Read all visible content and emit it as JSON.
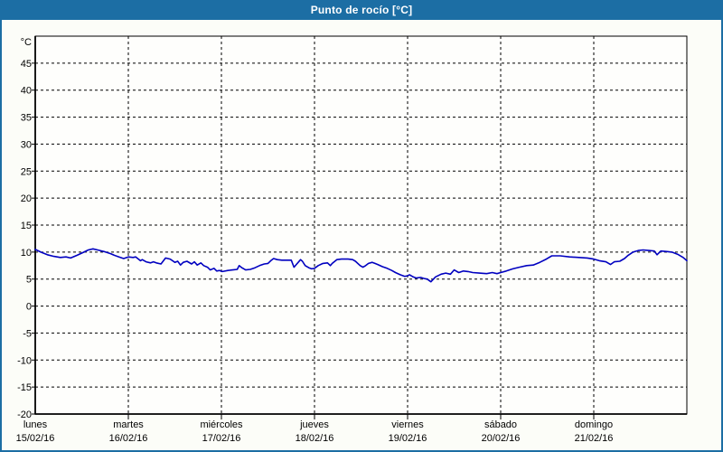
{
  "window": {
    "title": "Punto de rocío [°C]"
  },
  "colors": {
    "header_bg": "#1c6ea4",
    "page_border": "#1c6ea4",
    "page_bg": "#fcfdf8",
    "plot_bg": "#fefefc",
    "grid": "#000000",
    "axis": "#000000",
    "line": "#0000c0",
    "title_text": "#ffffff"
  },
  "chart_data": {
    "type": "line",
    "title": "Punto de rocío [°C]",
    "xlabel": "",
    "ylabel": "°C",
    "ylim": [
      -20,
      50
    ],
    "ytick_step": 5,
    "yticks": [
      45,
      40,
      35,
      30,
      25,
      20,
      15,
      10,
      5,
      0,
      -5,
      -10,
      -15,
      -20
    ],
    "grid": true,
    "legend_position": "none",
    "x_axis": {
      "days": [
        {
          "name": "lunes",
          "date": "15/02/16"
        },
        {
          "name": "martes",
          "date": "16/02/16"
        },
        {
          "name": "miércoles",
          "date": "17/02/16"
        },
        {
          "name": "jueves",
          "date": "18/02/16"
        },
        {
          "name": "viernes",
          "date": "19/02/16"
        },
        {
          "name": "sábado",
          "date": "20/02/16"
        },
        {
          "name": "domingo",
          "date": "21/02/16"
        }
      ],
      "x_range_days": [
        0,
        7
      ]
    },
    "series": [
      {
        "name": "Punto de rocío",
        "color": "#0000c0",
        "units": "°C",
        "points": [
          [
            0.0,
            10.5
          ],
          [
            0.06,
            10.0
          ],
          [
            0.13,
            9.5
          ],
          [
            0.2,
            9.2
          ],
          [
            0.27,
            9.0
          ],
          [
            0.33,
            9.1
          ],
          [
            0.38,
            8.9
          ],
          [
            0.45,
            9.4
          ],
          [
            0.51,
            9.9
          ],
          [
            0.57,
            10.4
          ],
          [
            0.62,
            10.6
          ],
          [
            0.67,
            10.4
          ],
          [
            0.74,
            10.1
          ],
          [
            0.81,
            9.7
          ],
          [
            0.85,
            9.4
          ],
          [
            0.9,
            9.1
          ],
          [
            0.95,
            8.8
          ],
          [
            1.0,
            9.1
          ],
          [
            1.05,
            9.0
          ],
          [
            1.08,
            9.1
          ],
          [
            1.13,
            8.4
          ],
          [
            1.15,
            8.6
          ],
          [
            1.19,
            8.2
          ],
          [
            1.24,
            8.0
          ],
          [
            1.27,
            8.2
          ],
          [
            1.3,
            8.0
          ],
          [
            1.35,
            7.8
          ],
          [
            1.4,
            8.9
          ],
          [
            1.45,
            8.7
          ],
          [
            1.5,
            8.1
          ],
          [
            1.53,
            8.3
          ],
          [
            1.56,
            7.6
          ],
          [
            1.59,
            8.1
          ],
          [
            1.63,
            8.3
          ],
          [
            1.68,
            7.8
          ],
          [
            1.71,
            8.2
          ],
          [
            1.74,
            7.6
          ],
          [
            1.78,
            8.0
          ],
          [
            1.81,
            7.5
          ],
          [
            1.85,
            7.2
          ],
          [
            1.88,
            6.7
          ],
          [
            1.92,
            7.0
          ],
          [
            1.95,
            6.5
          ],
          [
            1.98,
            6.6
          ],
          [
            2.01,
            6.4
          ],
          [
            2.07,
            6.6
          ],
          [
            2.12,
            6.7
          ],
          [
            2.17,
            6.8
          ],
          [
            2.19,
            7.5
          ],
          [
            2.22,
            7.1
          ],
          [
            2.26,
            6.7
          ],
          [
            2.31,
            6.8
          ],
          [
            2.36,
            7.1
          ],
          [
            2.41,
            7.5
          ],
          [
            2.46,
            7.8
          ],
          [
            2.5,
            7.9
          ],
          [
            2.53,
            8.4
          ],
          [
            2.56,
            8.8
          ],
          [
            2.6,
            8.6
          ],
          [
            2.65,
            8.5
          ],
          [
            2.7,
            8.5
          ],
          [
            2.75,
            8.5
          ],
          [
            2.78,
            7.2
          ],
          [
            2.81,
            7.8
          ],
          [
            2.85,
            8.6
          ],
          [
            2.87,
            8.3
          ],
          [
            2.9,
            7.5
          ],
          [
            2.94,
            7.1
          ],
          [
            2.97,
            6.9
          ],
          [
            3.0,
            7.0
          ],
          [
            3.04,
            7.5
          ],
          [
            3.09,
            7.9
          ],
          [
            3.14,
            8.0
          ],
          [
            3.17,
            7.5
          ],
          [
            3.19,
            7.9
          ],
          [
            3.24,
            8.6
          ],
          [
            3.29,
            8.7
          ],
          [
            3.36,
            8.7
          ],
          [
            3.41,
            8.6
          ],
          [
            3.44,
            8.3
          ],
          [
            3.49,
            7.5
          ],
          [
            3.52,
            7.2
          ],
          [
            3.55,
            7.5
          ],
          [
            3.58,
            7.9
          ],
          [
            3.62,
            8.1
          ],
          [
            3.65,
            7.9
          ],
          [
            3.68,
            7.7
          ],
          [
            3.73,
            7.3
          ],
          [
            3.78,
            7.0
          ],
          [
            3.83,
            6.6
          ],
          [
            3.87,
            6.2
          ],
          [
            3.92,
            5.8
          ],
          [
            3.97,
            5.5
          ],
          [
            4.0,
            5.6
          ],
          [
            4.02,
            5.8
          ],
          [
            4.06,
            5.4
          ],
          [
            4.09,
            5.2
          ],
          [
            4.14,
            5.3
          ],
          [
            4.18,
            5.1
          ],
          [
            4.21,
            5.0
          ],
          [
            4.25,
            4.5
          ],
          [
            4.3,
            5.4
          ],
          [
            4.36,
            5.9
          ],
          [
            4.41,
            6.1
          ],
          [
            4.46,
            5.9
          ],
          [
            4.5,
            6.7
          ],
          [
            4.55,
            6.2
          ],
          [
            4.6,
            6.5
          ],
          [
            4.65,
            6.4
          ],
          [
            4.7,
            6.2
          ],
          [
            4.77,
            6.1
          ],
          [
            4.85,
            6.0
          ],
          [
            4.91,
            6.2
          ],
          [
            4.96,
            6.0
          ],
          [
            5.0,
            6.2
          ],
          [
            5.06,
            6.5
          ],
          [
            5.13,
            6.9
          ],
          [
            5.2,
            7.2
          ],
          [
            5.28,
            7.5
          ],
          [
            5.35,
            7.6
          ],
          [
            5.42,
            8.1
          ],
          [
            5.49,
            8.7
          ],
          [
            5.55,
            9.3
          ],
          [
            5.64,
            9.3
          ],
          [
            5.74,
            9.1
          ],
          [
            5.84,
            9.0
          ],
          [
            5.93,
            8.9
          ],
          [
            6.0,
            8.7
          ],
          [
            6.06,
            8.4
          ],
          [
            6.13,
            8.2
          ],
          [
            6.18,
            7.7
          ],
          [
            6.22,
            8.2
          ],
          [
            6.28,
            8.3
          ],
          [
            6.33,
            8.8
          ],
          [
            6.37,
            9.4
          ],
          [
            6.42,
            10.0
          ],
          [
            6.48,
            10.3
          ],
          [
            6.53,
            10.4
          ],
          [
            6.59,
            10.3
          ],
          [
            6.65,
            10.2
          ],
          [
            6.68,
            9.5
          ],
          [
            6.72,
            10.2
          ],
          [
            6.79,
            10.1
          ],
          [
            6.84,
            10.0
          ],
          [
            6.9,
            9.6
          ],
          [
            6.96,
            9.0
          ],
          [
            7.0,
            8.4
          ]
        ]
      }
    ]
  }
}
